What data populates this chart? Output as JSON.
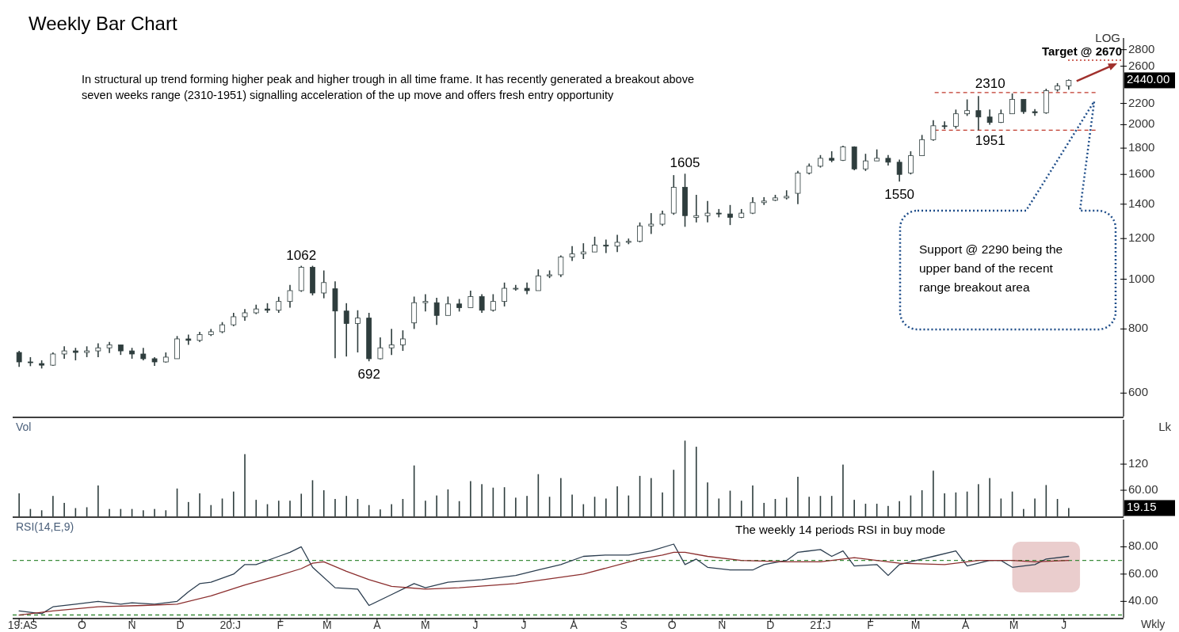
{
  "chart_data": [
    {
      "type": "candlestick",
      "title": "Weekly Bar Chart",
      "log": true,
      "color": "#2e3d3d",
      "tick_labels": "y",
      "x": [
        "2019-08-23",
        "2019-08-30",
        "2019-09-06",
        "2019-09-13",
        "2019-09-20",
        "2019-09-27",
        "2019-10-04",
        "2019-10-11",
        "2019-10-18",
        "2019-10-25",
        "2019-11-01",
        "2019-11-08",
        "2019-11-15",
        "2019-11-22",
        "2019-11-29",
        "2019-12-06",
        "2019-12-13",
        "2019-12-20",
        "2019-12-27",
        "2020-01-03",
        "2020-01-10",
        "2020-01-17",
        "2020-01-24",
        "2020-01-31",
        "2020-02-07",
        "2020-02-14",
        "2020-02-21",
        "2020-02-28",
        "2020-03-06",
        "2020-03-13",
        "2020-03-20",
        "2020-03-27",
        "2020-04-03",
        "2020-04-10",
        "2020-04-17",
        "2020-04-24",
        "2020-05-01",
        "2020-05-08",
        "2020-05-15",
        "2020-05-22",
        "2020-05-29",
        "2020-06-05",
        "2020-06-12",
        "2020-06-19",
        "2020-06-26",
        "2020-07-03",
        "2020-07-10",
        "2020-07-17",
        "2020-07-24",
        "2020-07-31",
        "2020-08-07",
        "2020-08-14",
        "2020-08-21",
        "2020-08-28",
        "2020-09-04",
        "2020-09-11",
        "2020-09-18",
        "2020-09-25",
        "2020-10-02",
        "2020-10-09",
        "2020-10-16",
        "2020-10-23",
        "2020-10-30",
        "2020-11-06",
        "2020-11-13",
        "2020-11-20",
        "2020-11-27",
        "2020-12-04",
        "2020-12-11",
        "2020-12-18",
        "2020-12-25",
        "2021-01-01",
        "2021-01-08",
        "2021-01-15",
        "2021-01-22",
        "2021-01-29",
        "2021-02-05",
        "2021-02-12",
        "2021-02-19",
        "2021-02-26",
        "2021-03-05",
        "2021-03-12",
        "2021-03-19",
        "2021-03-26",
        "2021-04-02",
        "2021-04-09",
        "2021-04-16",
        "2021-04-23",
        "2021-04-30",
        "2021-05-07",
        "2021-05-14",
        "2021-05-21",
        "2021-05-28",
        "2021-06-04"
      ],
      "xlim": [
        "2019-08-19",
        "2021-07-08"
      ],
      "ylim": [
        540,
        2950
      ],
      "yticks": [
        600,
        800,
        1000,
        1200,
        1400,
        1600,
        1800,
        2000,
        2200,
        2600,
        2800
      ],
      "ohlc": [
        [
          720,
          725,
          675,
          690
        ],
        [
          690,
          705,
          677,
          688
        ],
        [
          685,
          695,
          670,
          680
        ],
        [
          680,
          720,
          678,
          715
        ],
        [
          715,
          740,
          700,
          725
        ],
        [
          725,
          735,
          695,
          720
        ],
        [
          720,
          740,
          705,
          725
        ],
        [
          725,
          750,
          705,
          735
        ],
        [
          735,
          755,
          718,
          745
        ],
        [
          745,
          745,
          712,
          725
        ],
        [
          725,
          735,
          700,
          715
        ],
        [
          715,
          735,
          695,
          700
        ],
        [
          700,
          705,
          678,
          690
        ],
        [
          690,
          720,
          688,
          705
        ],
        [
          700,
          775,
          700,
          765
        ],
        [
          765,
          780,
          745,
          760
        ],
        [
          760,
          790,
          755,
          780
        ],
        [
          780,
          800,
          775,
          790
        ],
        [
          790,
          825,
          785,
          815
        ],
        [
          815,
          860,
          810,
          845
        ],
        [
          845,
          875,
          830,
          860
        ],
        [
          860,
          892,
          855,
          875
        ],
        [
          875,
          898,
          860,
          870
        ],
        [
          870,
          924,
          860,
          905
        ],
        [
          905,
          975,
          880,
          950
        ],
        [
          950,
          1062,
          945,
          1055
        ],
        [
          1055,
          1062,
          930,
          940
        ],
        [
          940,
          1040,
          918,
          985
        ],
        [
          958,
          990,
          702,
          867
        ],
        [
          867,
          898,
          707,
          820
        ],
        [
          820,
          870,
          720,
          840
        ],
        [
          840,
          860,
          692,
          700
        ],
        [
          700,
          770,
          698,
          735
        ],
        [
          735,
          800,
          712,
          745
        ],
        [
          745,
          795,
          725,
          765
        ],
        [
          822,
          925,
          800,
          900
        ],
        [
          900,
          935,
          865,
          905
        ],
        [
          900,
          920,
          815,
          850
        ],
        [
          850,
          925,
          850,
          895
        ],
        [
          895,
          915,
          865,
          880
        ],
        [
          880,
          950,
          880,
          925
        ],
        [
          925,
          935,
          860,
          870
        ],
        [
          870,
          935,
          865,
          905
        ],
        [
          905,
          985,
          885,
          960
        ],
        [
          960,
          975,
          950,
          960
        ],
        [
          960,
          985,
          935,
          950
        ],
        [
          950,
          1045,
          950,
          1015
        ],
        [
          1015,
          1040,
          1005,
          1020
        ],
        [
          1020,
          1113,
          1010,
          1105
        ],
        [
          1105,
          1160,
          1085,
          1120
        ],
        [
          1120,
          1175,
          1095,
          1130
        ],
        [
          1130,
          1210,
          1130,
          1165
        ],
        [
          1165,
          1195,
          1125,
          1160
        ],
        [
          1160,
          1220,
          1130,
          1180
        ],
        [
          1180,
          1200,
          1170,
          1185
        ],
        [
          1185,
          1290,
          1180,
          1270
        ],
        [
          1270,
          1345,
          1225,
          1280
        ],
        [
          1280,
          1360,
          1270,
          1340
        ],
        [
          1345,
          1595,
          1335,
          1510
        ],
        [
          1510,
          1605,
          1265,
          1330
        ],
        [
          1320,
          1460,
          1290,
          1330
        ],
        [
          1330,
          1420,
          1290,
          1345
        ],
        [
          1345,
          1370,
          1320,
          1340
        ],
        [
          1340,
          1395,
          1275,
          1320
        ],
        [
          1320,
          1370,
          1315,
          1345
        ],
        [
          1345,
          1445,
          1340,
          1410
        ],
        [
          1410,
          1445,
          1395,
          1420
        ],
        [
          1425,
          1460,
          1420,
          1440
        ],
        [
          1440,
          1490,
          1430,
          1450
        ],
        [
          1470,
          1625,
          1400,
          1610
        ],
        [
          1610,
          1680,
          1600,
          1660
        ],
        [
          1660,
          1745,
          1650,
          1720
        ],
        [
          1720,
          1775,
          1690,
          1705
        ],
        [
          1705,
          1820,
          1700,
          1810
        ],
        [
          1810,
          1815,
          1630,
          1640
        ],
        [
          1640,
          1755,
          1625,
          1700
        ],
        [
          1700,
          1790,
          1700,
          1720
        ],
        [
          1720,
          1745,
          1665,
          1690
        ],
        [
          1690,
          1710,
          1550,
          1600
        ],
        [
          1610,
          1775,
          1600,
          1740
        ],
        [
          1740,
          1910,
          1740,
          1870
        ],
        [
          1870,
          2040,
          1860,
          1990
        ],
        [
          1990,
          2030,
          1960,
          1985
        ],
        [
          1985,
          2140,
          1965,
          2100
        ],
        [
          2100,
          2240,
          2080,
          2130
        ],
        [
          2130,
          2275,
          1951,
          2070
        ],
        [
          2070,
          2140,
          2000,
          2020
        ],
        [
          2020,
          2140,
          2015,
          2100
        ],
        [
          2100,
          2300,
          2100,
          2240
        ],
        [
          2240,
          2240,
          2100,
          2120
        ],
        [
          2120,
          2145,
          2080,
          2110
        ],
        [
          2110,
          2350,
          2100,
          2330
        ],
        [
          2340,
          2410,
          2320,
          2380
        ],
        [
          2380,
          2450,
          2340,
          2440
        ]
      ],
      "ref_lines": [
        {
          "axis": "y",
          "value": 2310,
          "label": "2310",
          "color": "#c0392b",
          "line_style": "dashed"
        },
        {
          "axis": "y",
          "value": 1951,
          "label": "1951",
          "color": "#c0392b",
          "line_style": "dashed"
        },
        {
          "axis": "y",
          "value": 2670,
          "label": "Target @ 2670",
          "color": "#c0392b",
          "line_style": "dotted"
        }
      ],
      "annotations": [
        "In structural up trend forming higher peak and higher trough in all time frame. It has recently generated a breakout above seven weeks range (2310-1951) signalling acceleration of the up move and offers fresh entry opportunity",
        "Support @ 2290 being the upper band of the recent range breakout area",
        "LOG",
        "2440.00",
        {
          "text": "1062",
          "x": "2020-02-14",
          "y": 1062
        },
        {
          "text": "692",
          "x": "2020-03-27",
          "y": 692
        },
        {
          "text": "1605",
          "x": "2020-10-09",
          "y": 1605
        },
        {
          "text": "1550",
          "x": "2021-02-19",
          "y": 1550
        }
      ]
    },
    {
      "type": "bar",
      "title": "Vol",
      "ylabel": "Lk",
      "color": "#2e3d3d",
      "tick_labels": "y",
      "x": [
        "2019-08-23",
        "2019-08-30",
        "2019-09-06",
        "2019-09-13",
        "2019-09-20",
        "2019-09-27",
        "2019-10-04",
        "2019-10-11",
        "2019-10-18",
        "2019-10-25",
        "2019-11-01",
        "2019-11-08",
        "2019-11-15",
        "2019-11-22",
        "2019-11-29",
        "2019-12-06",
        "2019-12-13",
        "2019-12-20",
        "2019-12-27",
        "2020-01-03",
        "2020-01-10",
        "2020-01-17",
        "2020-01-24",
        "2020-01-31",
        "2020-02-07",
        "2020-02-14",
        "2020-02-21",
        "2020-02-28",
        "2020-03-06",
        "2020-03-13",
        "2020-03-20",
        "2020-03-27",
        "2020-04-03",
        "2020-04-10",
        "2020-04-17",
        "2020-04-24",
        "2020-05-01",
        "2020-05-08",
        "2020-05-15",
        "2020-05-22",
        "2020-05-29",
        "2020-06-05",
        "2020-06-12",
        "2020-06-19",
        "2020-06-26",
        "2020-07-03",
        "2020-07-10",
        "2020-07-17",
        "2020-07-24",
        "2020-07-31",
        "2020-08-07",
        "2020-08-14",
        "2020-08-21",
        "2020-08-28",
        "2020-09-04",
        "2020-09-11",
        "2020-09-18",
        "2020-09-25",
        "2020-10-02",
        "2020-10-09",
        "2020-10-16",
        "2020-10-23",
        "2020-10-30",
        "2020-11-06",
        "2020-11-13",
        "2020-11-20",
        "2020-11-27",
        "2020-12-04",
        "2020-12-11",
        "2020-12-18",
        "2020-12-25",
        "2021-01-01",
        "2021-01-08",
        "2021-01-15",
        "2021-01-22",
        "2021-01-29",
        "2021-02-05",
        "2021-02-12",
        "2021-02-19",
        "2021-02-26",
        "2021-03-05",
        "2021-03-12",
        "2021-03-19",
        "2021-03-26",
        "2021-04-02",
        "2021-04-09",
        "2021-04-16",
        "2021-04-23",
        "2021-04-30",
        "2021-05-07",
        "2021-05-14",
        "2021-05-21",
        "2021-05-28",
        "2021-06-04"
      ],
      "xlim": [
        "2019-08-19",
        "2021-07-08"
      ],
      "ylim": [
        0,
        222
      ],
      "yticks": [
        {
          "value": 60,
          "label": "60.00"
        },
        120
      ],
      "values": [
        53,
        17,
        14,
        47,
        31,
        19,
        21,
        71,
        17,
        17,
        17,
        14,
        17,
        14,
        64,
        33,
        53,
        26,
        41,
        57,
        143,
        38,
        28,
        36,
        36,
        52,
        83,
        60,
        40,
        47,
        40,
        26,
        16,
        28,
        40,
        117,
        36,
        48,
        62,
        35,
        81,
        74,
        66,
        67,
        43,
        47,
        97,
        45,
        88,
        50,
        28,
        45,
        41,
        69,
        48,
        93,
        88,
        55,
        107,
        174,
        160,
        78,
        41,
        59,
        36,
        71,
        31,
        40,
        43,
        91,
        45,
        47,
        47,
        119,
        38,
        29,
        29,
        24,
        35,
        48,
        60,
        105,
        53,
        55,
        57,
        74,
        88,
        41,
        57,
        17,
        41,
        72,
        40,
        19.15
      ],
      "annotations": [
        "19.15"
      ]
    },
    {
      "type": "line",
      "title": "RSI(14,E,9)",
      "xlabel": "Wkly",
      "xlim": [
        "2019-08-19",
        "2021-07-08"
      ],
      "ylim": [
        28,
        100
      ],
      "yticks": [
        {
          "value": 40,
          "label": "40.00"
        },
        {
          "value": 60,
          "label": "60.00"
        },
        {
          "value": 80,
          "label": "80.00"
        }
      ],
      "xticks": [
        {
          "value": "2019-08-23",
          "label": "19:A"
        },
        {
          "value": "2019-09-01",
          "label": "S"
        },
        {
          "value": "2019-10-01",
          "label": "O"
        },
        {
          "value": "2019-11-01",
          "label": "N"
        },
        {
          "value": "2019-12-01",
          "label": "D"
        },
        {
          "value": "2020-01-01",
          "label": "20:J"
        },
        {
          "value": "2020-02-01",
          "label": "F"
        },
        {
          "value": "2020-03-01",
          "label": "M"
        },
        {
          "value": "2020-04-01",
          "label": "A"
        },
        {
          "value": "2020-05-01",
          "label": "M"
        },
        {
          "value": "2020-06-01",
          "label": "J"
        },
        {
          "value": "2020-07-01",
          "label": "J"
        },
        {
          "value": "2020-08-01",
          "label": "A"
        },
        {
          "value": "2020-09-01",
          "label": "S"
        },
        {
          "value": "2020-10-01",
          "label": "O"
        },
        {
          "value": "2020-11-01",
          "label": "N"
        },
        {
          "value": "2020-12-01",
          "label": "D"
        },
        {
          "value": "2021-01-01",
          "label": "21:J"
        },
        {
          "value": "2021-02-01",
          "label": "F"
        },
        {
          "value": "2021-03-01",
          "label": "M"
        },
        {
          "value": "2021-04-01",
          "label": "A"
        },
        {
          "value": "2021-05-01",
          "label": "M"
        },
        {
          "value": "2021-06-01",
          "label": "J"
        }
      ],
      "series": [
        {
          "color": "#2c3e50",
          "x": [
            "2019-08-23",
            "2019-09-06",
            "2019-09-13",
            "2019-09-27",
            "2019-10-11",
            "2019-10-25",
            "2019-11-01",
            "2019-11-15",
            "2019-11-29",
            "2019-12-06",
            "2019-12-13",
            "2019-12-20",
            "2020-01-03",
            "2020-01-10",
            "2020-01-17",
            "2020-01-31",
            "2020-02-07",
            "2020-02-14",
            "2020-02-21",
            "2020-03-06",
            "2020-03-20",
            "2020-03-27",
            "2020-04-10",
            "2020-04-24",
            "2020-05-01",
            "2020-05-15",
            "2020-06-05",
            "2020-06-26",
            "2020-07-10",
            "2020-07-24",
            "2020-08-07",
            "2020-08-21",
            "2020-09-04",
            "2020-09-18",
            "2020-10-02",
            "2020-10-09",
            "2020-10-16",
            "2020-10-23",
            "2020-11-06",
            "2020-11-20",
            "2020-11-27",
            "2020-12-11",
            "2020-12-18",
            "2021-01-01",
            "2021-01-08",
            "2021-01-15",
            "2021-01-22",
            "2021-02-05",
            "2021-02-12",
            "2021-02-19",
            "2021-03-05",
            "2021-03-12",
            "2021-03-26",
            "2021-04-02",
            "2021-04-16",
            "2021-04-23",
            "2021-04-30",
            "2021-05-14",
            "2021-05-21",
            "2021-06-04"
          ],
          "values": [
            33,
            31,
            36,
            38,
            40,
            38,
            39,
            38,
            40,
            47,
            53,
            54,
            60,
            67,
            67,
            73,
            76,
            80,
            65,
            50,
            49,
            37,
            45,
            53,
            50,
            54,
            56,
            59,
            63,
            67,
            73,
            74,
            74,
            77,
            82,
            67,
            71,
            65,
            63,
            63,
            67,
            70,
            76,
            78,
            73,
            77,
            66,
            67,
            59,
            67,
            71,
            73,
            77,
            66,
            70,
            70,
            65,
            67,
            71,
            73
          ]
        },
        {
          "color": "#8b2e2e",
          "x": [
            "2019-08-23",
            "2019-09-13",
            "2019-10-11",
            "2019-11-08",
            "2019-11-29",
            "2019-12-20",
            "2020-01-10",
            "2020-01-31",
            "2020-02-14",
            "2020-02-21",
            "2020-02-28",
            "2020-03-13",
            "2020-03-27",
            "2020-04-10",
            "2020-05-01",
            "2020-05-22",
            "2020-06-26",
            "2020-08-07",
            "2020-09-11",
            "2020-09-25",
            "2020-10-02",
            "2020-10-09",
            "2020-10-23",
            "2020-11-13",
            "2020-12-11",
            "2021-01-01",
            "2021-01-22",
            "2021-02-19",
            "2021-03-19",
            "2021-04-09",
            "2021-04-30",
            "2021-05-14",
            "2021-06-04"
          ],
          "values": [
            30,
            33,
            36,
            37,
            38,
            44,
            52,
            59,
            64,
            68,
            69,
            62,
            56,
            51,
            49,
            50,
            53,
            60,
            71,
            74,
            76,
            76,
            73,
            70,
            69,
            69,
            72,
            68,
            67,
            70,
            70,
            69,
            70
          ]
        }
      ],
      "ref_lines": [
        {
          "axis": "y",
          "value": 70,
          "color": "#3c8c3c",
          "line_style": "dashed"
        },
        {
          "axis": "y",
          "value": 30,
          "color": "#3c8c3c",
          "line_style": "dashed"
        }
      ],
      "bands": [
        {
          "axis": "x",
          "from": "2021-04-30",
          "to": "2021-06-11",
          "color": "#e6c4c4"
        }
      ],
      "annotations": [
        "The weekly 14 periods RSI in buy mode"
      ]
    }
  ]
}
